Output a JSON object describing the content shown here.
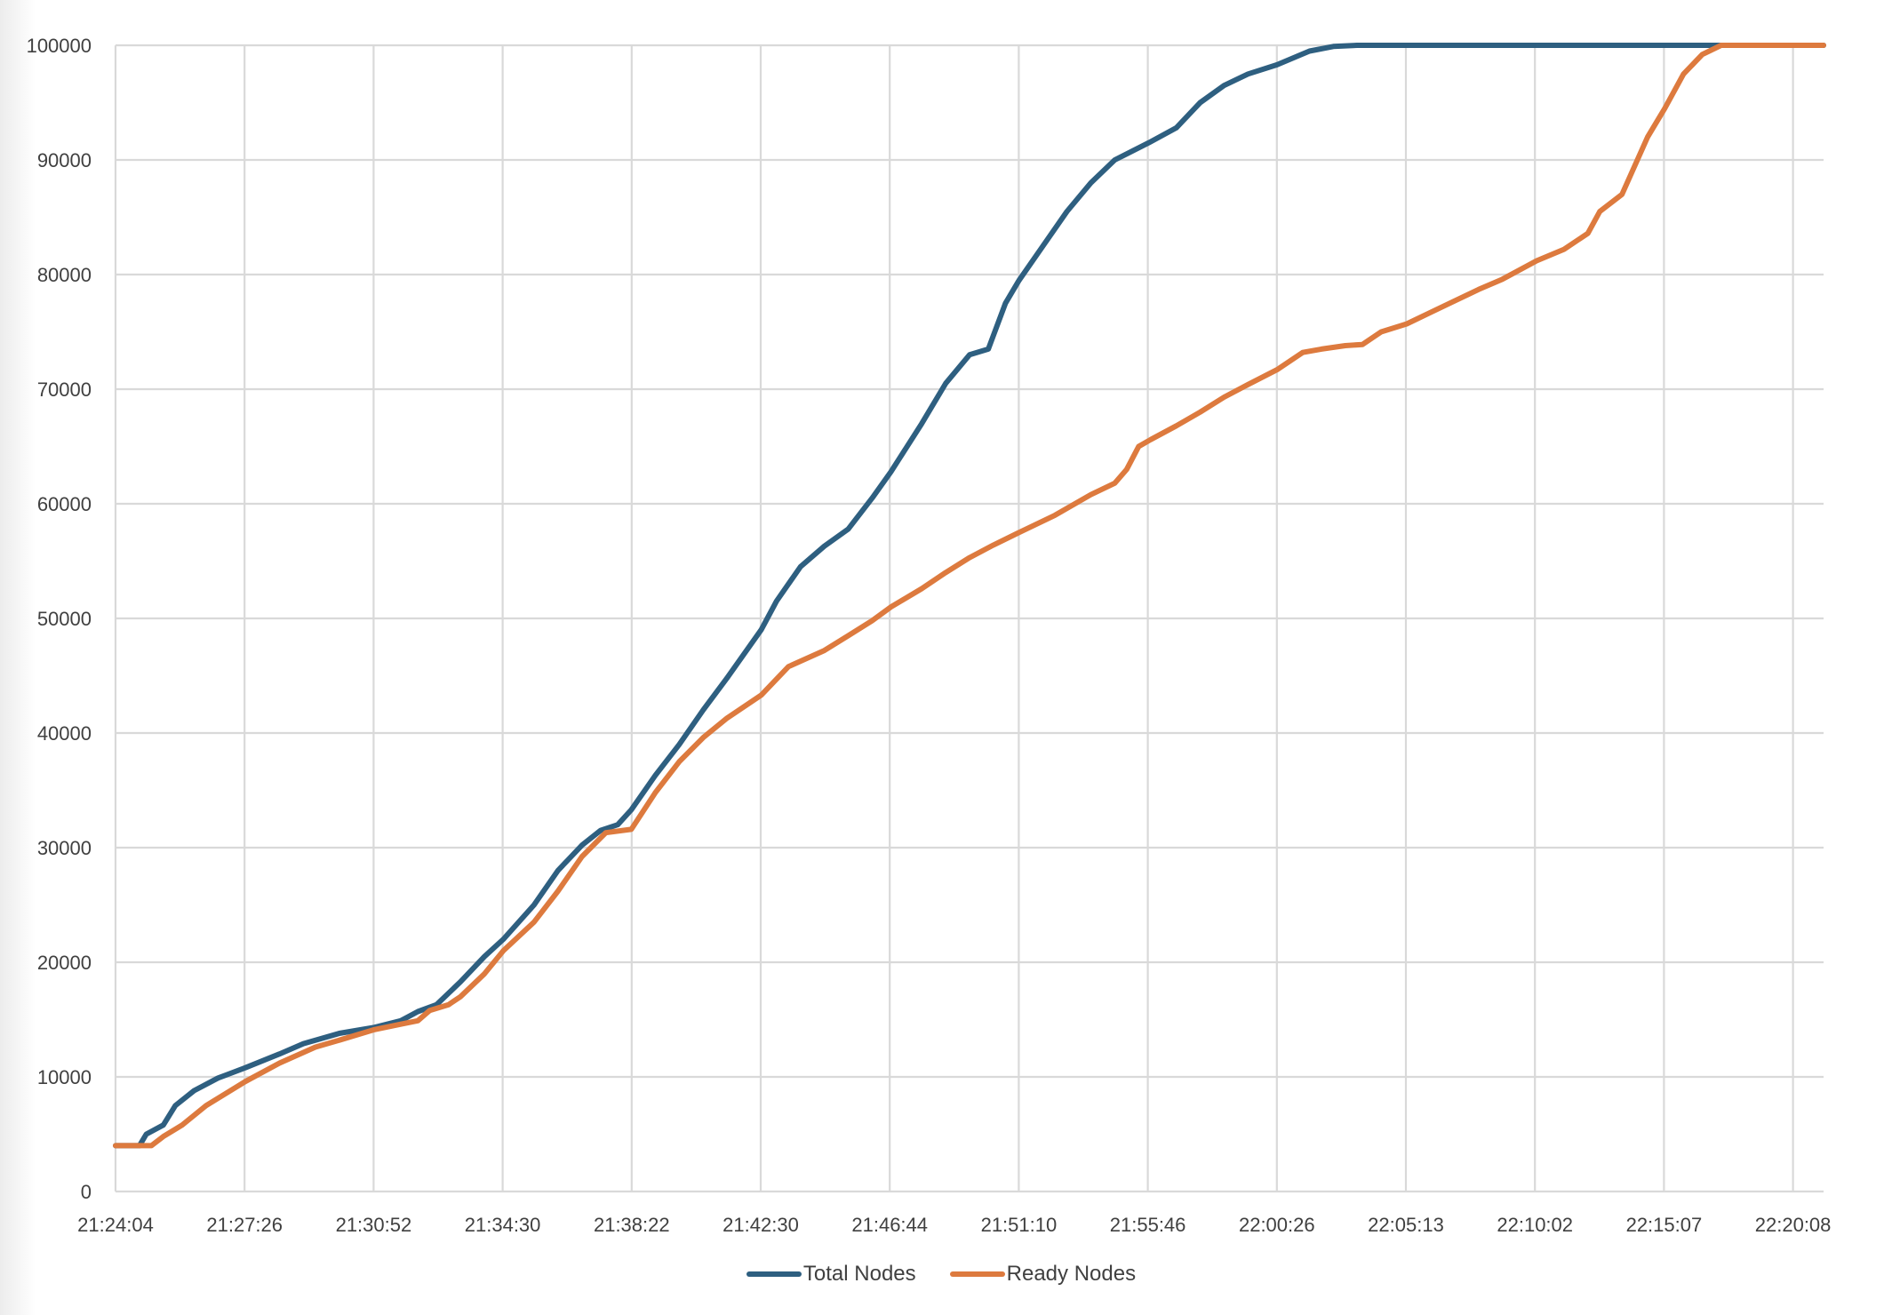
{
  "chart": {
    "title_visible": "",
    "legend": [
      {
        "label": "Total Nodes",
        "color": "#2e5f80"
      },
      {
        "label": "Ready Nodes",
        "color": "#dd7a3e"
      }
    ]
  },
  "chart_data": {
    "type": "line",
    "title": "",
    "xlabel": "",
    "ylabel": "",
    "ylim": [
      0,
      100000
    ],
    "yticks": [
      0,
      10000,
      20000,
      30000,
      40000,
      50000,
      60000,
      70000,
      80000,
      90000,
      100000
    ],
    "xtick_labels": [
      "21:24:04",
      "21:27:26",
      "21:30:52",
      "21:34:30",
      "21:38:22",
      "21:42:30",
      "21:46:44",
      "21:51:10",
      "21:55:46",
      "22:00:26",
      "22:05:13",
      "22:10:02",
      "22:15:07",
      "22:20:08"
    ],
    "grid": true,
    "legend_position": "bottom",
    "x_fraction_note": "x positions expressed as fraction of plot width (0 = 21:24:04, ~0.9865 = 22:20:08)",
    "series": [
      {
        "name": "Total Nodes",
        "color": "#2e5f80",
        "points": [
          [
            0.0,
            4000
          ],
          [
            0.014,
            4000
          ],
          [
            0.018,
            5000
          ],
          [
            0.028,
            5800
          ],
          [
            0.035,
            7500
          ],
          [
            0.046,
            8800
          ],
          [
            0.06,
            9900
          ],
          [
            0.076,
            10800
          ],
          [
            0.096,
            12000
          ],
          [
            0.11,
            12900
          ],
          [
            0.131,
            13800
          ],
          [
            0.151,
            14300
          ],
          [
            0.167,
            14900
          ],
          [
            0.177,
            15700
          ],
          [
            0.188,
            16300
          ],
          [
            0.202,
            18300
          ],
          [
            0.216,
            20500
          ],
          [
            0.227,
            22000
          ],
          [
            0.245,
            25000
          ],
          [
            0.259,
            28000
          ],
          [
            0.273,
            30200
          ],
          [
            0.284,
            31500
          ],
          [
            0.294,
            32000
          ],
          [
            0.302,
            33300
          ],
          [
            0.316,
            36300
          ],
          [
            0.33,
            39000
          ],
          [
            0.344,
            42000
          ],
          [
            0.358,
            44800
          ],
          [
            0.378,
            49000
          ],
          [
            0.387,
            51500
          ],
          [
            0.401,
            54500
          ],
          [
            0.415,
            56300
          ],
          [
            0.429,
            57800
          ],
          [
            0.443,
            60500
          ],
          [
            0.454,
            62800
          ],
          [
            0.472,
            67000
          ],
          [
            0.486,
            70500
          ],
          [
            0.5,
            73000
          ],
          [
            0.511,
            73500
          ],
          [
            0.521,
            77500
          ],
          [
            0.529,
            79500
          ],
          [
            0.543,
            82500
          ],
          [
            0.557,
            85500
          ],
          [
            0.571,
            88000
          ],
          [
            0.585,
            90000
          ],
          [
            0.605,
            91500
          ],
          [
            0.621,
            92800
          ],
          [
            0.635,
            95000
          ],
          [
            0.649,
            96500
          ],
          [
            0.663,
            97500
          ],
          [
            0.68,
            98300
          ],
          [
            0.699,
            99500
          ],
          [
            0.713,
            99900
          ],
          [
            0.727,
            100000
          ],
          [
            1.0,
            100000
          ]
        ]
      },
      {
        "name": "Ready Nodes",
        "color": "#dd7a3e",
        "points": [
          [
            0.0,
            4000
          ],
          [
            0.021,
            4000
          ],
          [
            0.028,
            4800
          ],
          [
            0.039,
            5800
          ],
          [
            0.053,
            7500
          ],
          [
            0.076,
            9600
          ],
          [
            0.096,
            11200
          ],
          [
            0.117,
            12600
          ],
          [
            0.131,
            13200
          ],
          [
            0.151,
            14100
          ],
          [
            0.167,
            14600
          ],
          [
            0.177,
            14900
          ],
          [
            0.184,
            15800
          ],
          [
            0.195,
            16300
          ],
          [
            0.202,
            17000
          ],
          [
            0.216,
            19000
          ],
          [
            0.227,
            21000
          ],
          [
            0.245,
            23500
          ],
          [
            0.259,
            26200
          ],
          [
            0.273,
            29200
          ],
          [
            0.287,
            31300
          ],
          [
            0.302,
            31600
          ],
          [
            0.316,
            34800
          ],
          [
            0.33,
            37500
          ],
          [
            0.344,
            39600
          ],
          [
            0.358,
            41300
          ],
          [
            0.378,
            43300
          ],
          [
            0.394,
            45800
          ],
          [
            0.415,
            47200
          ],
          [
            0.429,
            48500
          ],
          [
            0.443,
            49800
          ],
          [
            0.454,
            51000
          ],
          [
            0.472,
            52600
          ],
          [
            0.486,
            54000
          ],
          [
            0.5,
            55300
          ],
          [
            0.514,
            56400
          ],
          [
            0.529,
            57500
          ],
          [
            0.55,
            59000
          ],
          [
            0.571,
            60800
          ],
          [
            0.585,
            61800
          ],
          [
            0.592,
            63000
          ],
          [
            0.599,
            65000
          ],
          [
            0.606,
            65600
          ],
          [
            0.621,
            66800
          ],
          [
            0.635,
            68000
          ],
          [
            0.649,
            69300
          ],
          [
            0.663,
            70400
          ],
          [
            0.68,
            71700
          ],
          [
            0.695,
            73200
          ],
          [
            0.706,
            73500
          ],
          [
            0.72,
            73800
          ],
          [
            0.73,
            73900
          ],
          [
            0.741,
            75000
          ],
          [
            0.756,
            75700
          ],
          [
            0.77,
            76700
          ],
          [
            0.784,
            77700
          ],
          [
            0.798,
            78700
          ],
          [
            0.812,
            79600
          ],
          [
            0.832,
            81200
          ],
          [
            0.848,
            82200
          ],
          [
            0.862,
            83600
          ],
          [
            0.869,
            85500
          ],
          [
            0.882,
            87000
          ],
          [
            0.897,
            92000
          ],
          [
            0.907,
            94500
          ],
          [
            0.918,
            97500
          ],
          [
            0.929,
            99200
          ],
          [
            0.94,
            100000
          ],
          [
            1.0,
            100000
          ]
        ]
      }
    ]
  }
}
